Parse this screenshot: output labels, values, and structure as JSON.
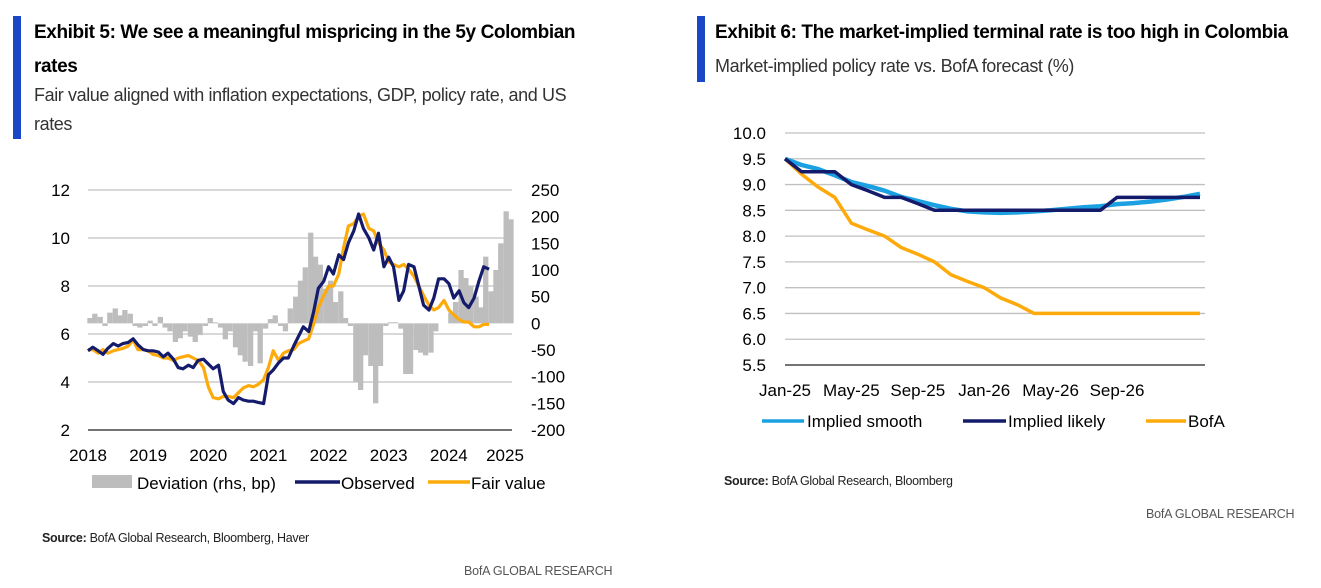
{
  "exhibit5": {
    "title_line1": "Exhibit 5: We see a meaningful mispricing in the 5y Colombian",
    "title_line2": "rates",
    "subtitle_line1": "Fair value aligned with inflation expectations, GDP, policy rate, and US",
    "subtitle_line2": "rates",
    "source_label": "Source:",
    "source_text": " BofA Global Research, Bloomberg, Haver",
    "footer": "BofA GLOBAL RESEARCH"
  },
  "exhibit6": {
    "title": "Exhibit 6: The market-implied terminal rate is too high in Colombia",
    "subtitle": "Market-implied policy rate vs. BofA forecast (%)",
    "source_label": "Source:",
    "source_text": " BofA Global Research, Bloomberg",
    "footer": "BofA GLOBAL RESEARCH"
  },
  "colors": {
    "accent": "#1a46c8",
    "observed": "#141b6b",
    "fair_value": "#fdaa0a",
    "deviation": "#bdbdbd",
    "implied_smooth": "#1ba0e2",
    "implied_likely": "#141b6b",
    "bofa": "#fdaa0a",
    "grid": "#c0c0c0"
  },
  "chart_data": [
    {
      "type": "bar+line",
      "title": "Exhibit 5: We see a meaningful mispricing in the 5y Colombian rates",
      "subtitle": "Fair value aligned with inflation expectations, GDP, policy rate, and US rates",
      "xlabel": "",
      "ylabel": "",
      "x_tick_labels": [
        "2018",
        "2019",
        "2020",
        "2021",
        "2022",
        "2023",
        "2024",
        "2025"
      ],
      "x_range": [
        2018.0,
        2025.05
      ],
      "y_left": {
        "range": [
          2,
          12
        ],
        "ticks": [
          "2",
          "4",
          "6",
          "8",
          "10",
          "12"
        ]
      },
      "y_right": {
        "range": [
          -200,
          250
        ],
        "ticks": [
          "-200",
          "-150",
          "-100",
          "-50",
          "0",
          "50",
          "100",
          "150",
          "200",
          "250"
        ]
      },
      "grid": true,
      "legend_position": "bottom",
      "x": [
        2018.0,
        2018.08,
        2018.17,
        2018.25,
        2018.33,
        2018.42,
        2018.5,
        2018.58,
        2018.67,
        2018.75,
        2018.83,
        2018.92,
        2019.0,
        2019.08,
        2019.17,
        2019.25,
        2019.33,
        2019.42,
        2019.5,
        2019.58,
        2019.67,
        2019.75,
        2019.83,
        2019.92,
        2020.0,
        2020.08,
        2020.17,
        2020.25,
        2020.33,
        2020.42,
        2020.5,
        2020.58,
        2020.67,
        2020.75,
        2020.83,
        2020.92,
        2021.0,
        2021.08,
        2021.17,
        2021.25,
        2021.33,
        2021.42,
        2021.5,
        2021.58,
        2021.67,
        2021.75,
        2021.83,
        2021.92,
        2022.0,
        2022.08,
        2022.17,
        2022.25,
        2022.33,
        2022.42,
        2022.5,
        2022.58,
        2022.67,
        2022.75,
        2022.83,
        2022.92,
        2023.0,
        2023.08,
        2023.17,
        2023.25,
        2023.33,
        2023.42,
        2023.5,
        2023.58,
        2023.67,
        2023.75,
        2023.83,
        2023.92,
        2024.0,
        2024.08,
        2024.17,
        2024.25,
        2024.33,
        2024.42,
        2024.5,
        2024.58,
        2024.67,
        2024.75,
        2024.83,
        2024.92,
        2025.0
      ],
      "series": [
        {
          "name": "Deviation (rhs, bp)",
          "type": "bar",
          "axis": "right",
          "values": [
            10,
            18,
            12,
            -5,
            20,
            28,
            15,
            25,
            18,
            -5,
            -8,
            -5,
            5,
            -5,
            12,
            -8,
            -15,
            -35,
            -28,
            -15,
            -25,
            -35,
            -22,
            -5,
            10,
            2,
            -8,
            -30,
            -15,
            -45,
            -60,
            -72,
            -80,
            -15,
            -75,
            -10,
            8,
            15,
            -5,
            -15,
            28,
            50,
            80,
            105,
            170,
            125,
            110,
            65,
            80,
            40,
            60,
            10,
            -5,
            -110,
            -125,
            -60,
            -80,
            -150,
            -80,
            -5,
            2,
            2,
            -10,
            -95,
            -95,
            -50,
            -55,
            -60,
            -55,
            -15,
            0,
            0,
            20,
            40,
            100,
            85,
            70,
            50,
            30,
            125,
            60,
            100,
            150,
            210,
            195
          ]
        },
        {
          "name": "Observed",
          "type": "line",
          "axis": "left",
          "values": [
            5.3,
            5.45,
            5.3,
            5.15,
            5.4,
            5.6,
            5.5,
            5.6,
            5.65,
            5.8,
            5.55,
            5.35,
            5.3,
            5.3,
            5.25,
            5.05,
            5.2,
            4.95,
            4.6,
            4.55,
            4.7,
            4.6,
            4.9,
            4.95,
            4.75,
            4.55,
            4.7,
            3.6,
            3.25,
            3.1,
            3.35,
            3.25,
            3.2,
            3.2,
            3.15,
            3.1,
            4.3,
            4.5,
            4.8,
            5.0,
            5.0,
            5.5,
            5.9,
            6.3,
            6.1,
            6.9,
            7.9,
            8.2,
            8.8,
            8.5,
            9.3,
            9.1,
            9.8,
            10.3,
            11.0,
            10.4,
            10.0,
            9.5,
            10.2,
            8.8,
            9.2,
            8.8,
            7.4,
            7.8,
            8.9,
            8.8,
            8.0,
            7.2,
            7.0,
            7.5,
            8.3,
            8.3,
            8.1,
            7.5,
            7.8,
            7.3,
            7.1,
            7.5,
            8.2,
            8.8,
            8.7
          ],
          "x_subset": "first_81"
        },
        {
          "name": "Fair value",
          "type": "line",
          "axis": "left",
          "values": [
            5.35,
            5.35,
            5.2,
            5.35,
            5.2,
            5.3,
            5.35,
            5.4,
            5.5,
            5.75,
            5.35,
            5.35,
            5.3,
            5.15,
            5.1,
            5.0,
            5.0,
            4.9,
            5.0,
            5.05,
            5.1,
            5.0,
            4.9,
            4.6,
            3.8,
            3.35,
            3.3,
            3.4,
            3.4,
            3.35,
            3.55,
            3.75,
            3.85,
            3.8,
            3.9,
            4.1,
            4.6,
            5.3,
            4.9,
            5.2,
            5.3,
            5.35,
            5.6,
            5.7,
            5.8,
            6.4,
            7.1,
            7.6,
            8.0,
            8.0,
            8.5,
            9.6,
            10.5,
            10.6,
            10.9,
            11.0,
            10.4,
            10.3,
            9.8,
            9.5,
            9.0,
            8.9,
            8.8,
            8.9,
            8.7,
            8.4,
            8.0,
            7.6,
            7.2,
            7.0,
            7.1,
            7.4,
            7.0,
            6.8,
            6.6,
            6.5,
            6.5,
            6.3,
            6.3,
            6.4,
            6.4
          ]
        }
      ]
    },
    {
      "type": "line",
      "title": "Exhibit 6: The market-implied terminal rate is too high in Colombia",
      "subtitle": "Market-implied policy rate vs. BofA forecast (%)",
      "xlabel": "",
      "ylabel": "",
      "x_tick_labels": [
        "Jan-25",
        "May-25",
        "Sep-25",
        "Jan-26",
        "May-26",
        "Sep-26"
      ],
      "x_months_from_jan25": [
        0,
        1,
        2,
        3,
        4,
        5,
        6,
        7,
        8,
        9,
        10,
        11,
        12,
        13,
        14,
        15,
        16,
        17,
        18,
        19,
        20,
        21,
        22,
        23,
        24,
        25
      ],
      "y_range": [
        5.5,
        10.0
      ],
      "y_ticks": [
        "5.5",
        "6.0",
        "6.5",
        "7.0",
        "7.5",
        "8.0",
        "8.5",
        "9.0",
        "9.5",
        "10.0"
      ],
      "grid": true,
      "legend_position": "bottom",
      "series": [
        {
          "name": "Implied smooth",
          "values": [
            9.5,
            9.38,
            9.3,
            9.18,
            9.05,
            8.97,
            8.88,
            8.76,
            8.68,
            8.6,
            8.53,
            8.48,
            8.46,
            8.45,
            8.46,
            8.48,
            8.5,
            8.53,
            8.56,
            8.58,
            8.62,
            8.64,
            8.67,
            8.71,
            8.76,
            8.82
          ]
        },
        {
          "name": "Implied likely",
          "values": [
            9.5,
            9.25,
            9.25,
            9.25,
            9.0,
            8.88,
            8.75,
            8.75,
            8.63,
            8.5,
            8.5,
            8.5,
            8.5,
            8.5,
            8.5,
            8.5,
            8.5,
            8.5,
            8.5,
            8.5,
            8.75,
            8.75,
            8.75,
            8.75,
            8.75,
            8.75
          ]
        },
        {
          "name": "BofA",
          "values": [
            9.5,
            9.2,
            8.95,
            8.75,
            8.25,
            8.12,
            8.0,
            7.78,
            7.65,
            7.5,
            7.25,
            7.12,
            7.0,
            6.8,
            6.67,
            6.5,
            6.5,
            6.5,
            6.5,
            6.5,
            6.5,
            6.5,
            6.5,
            6.5,
            6.5,
            6.5
          ]
        }
      ]
    }
  ]
}
